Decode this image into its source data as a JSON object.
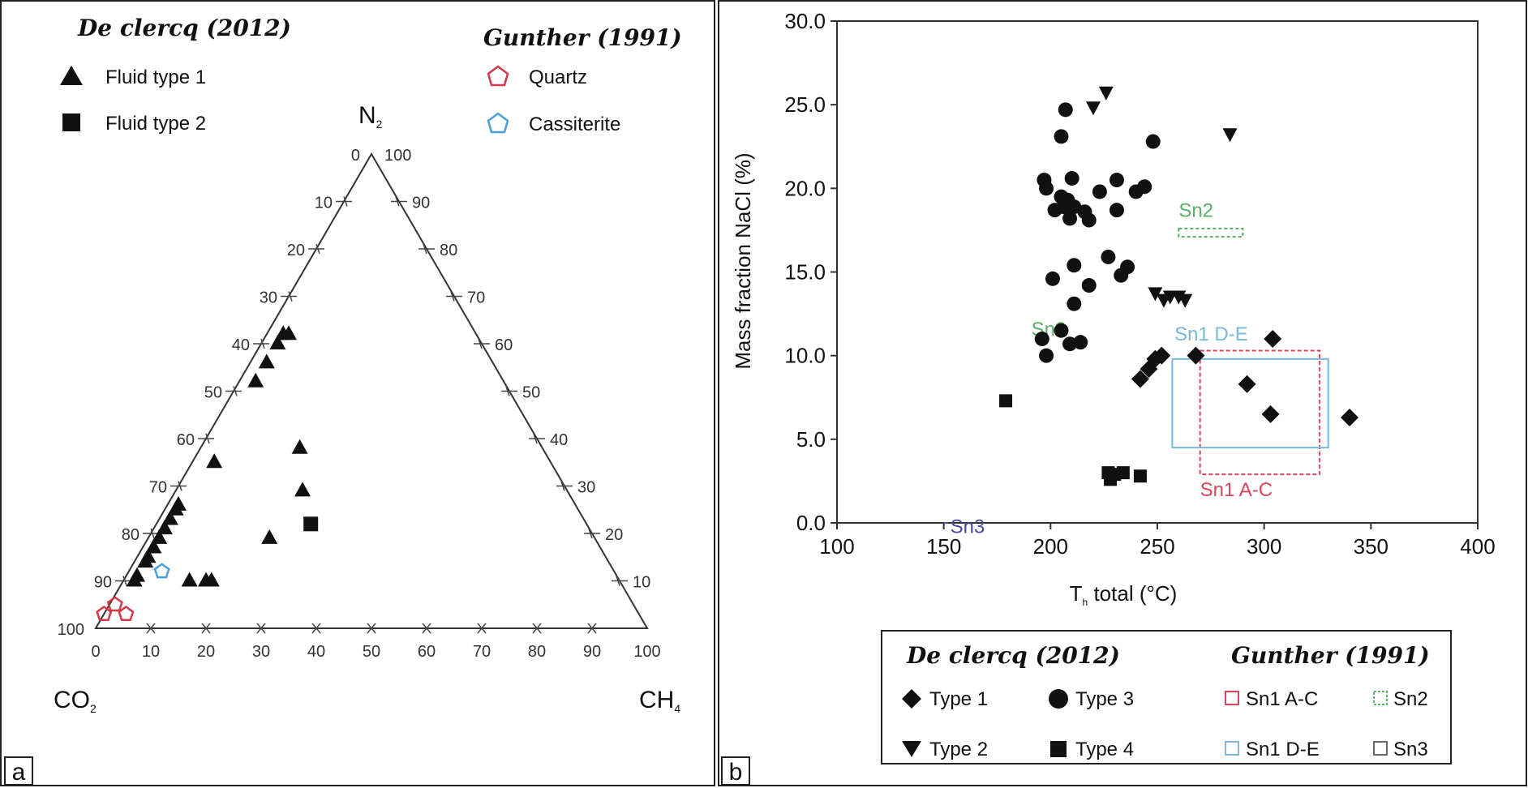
{
  "colors": {
    "black": "#111111",
    "quartz": "#d23a4a",
    "cassiterite": "#4a9fd8",
    "sn1ac": "#d9455a",
    "sn2": "#5aae6a",
    "sn1de": "#7ab8dc",
    "sn3": "#4a4aa0"
  },
  "panel_a": {
    "label": "a",
    "legend_left": {
      "title": "De clercq (2012)",
      "items": [
        {
          "name": "Fluid type 1",
          "marker": "triangle"
        },
        {
          "name": "Fluid type 2",
          "marker": "square"
        }
      ]
    },
    "legend_right": {
      "title": "Gunther (1991)",
      "items": [
        {
          "name": "Quartz",
          "marker": "pentagon-open-red"
        },
        {
          "name": "Cassiterite",
          "marker": "pentagon-open-blue"
        }
      ]
    },
    "vertex_labels": {
      "top": "N",
      "top_sub": "2",
      "left": "CO",
      "left_sub": "2",
      "right": "CH",
      "right_sub": "4"
    },
    "left_ticks": [
      "0",
      "10",
      "20",
      "30",
      "40",
      "50",
      "60",
      "70",
      "80",
      "90",
      "100"
    ],
    "right_ticks": [
      "100",
      "90",
      "80",
      "70",
      "60",
      "50",
      "40",
      "30",
      "20",
      "10"
    ],
    "bottom_ticks": [
      "0",
      "10",
      "20",
      "30",
      "40",
      "50",
      "60",
      "70",
      "80",
      "90",
      "100"
    ]
  },
  "panel_b": {
    "label": "b",
    "sn_labels": {
      "sn2_top": "Sn2",
      "sn2_mid": "Sn2",
      "sn1de": "Sn1 D-E",
      "sn1ac": "Sn1 A-C",
      "sn3": "Sn3"
    },
    "legend": {
      "left_title": "De clercq (2012)",
      "right_title": "Gunther (1991)",
      "items": [
        {
          "name": "Type 1",
          "marker": "diamond"
        },
        {
          "name": "Type 3",
          "marker": "circle"
        },
        {
          "name": "Type 2",
          "marker": "triangle-down"
        },
        {
          "name": "Type 4",
          "marker": "square"
        },
        {
          "name": "Sn1 A-C",
          "marker": "box-sn1ac"
        },
        {
          "name": "Sn2",
          "marker": "box-sn2"
        },
        {
          "name": "Sn1 D-E",
          "marker": "box-sn1de"
        },
        {
          "name": "Sn3",
          "marker": "box-sn3"
        }
      ]
    }
  },
  "chart_data": [
    {
      "type": "scatter",
      "subtype": "ternary",
      "title": "",
      "components": [
        "CO2",
        "N2",
        "CH4"
      ],
      "series": [
        {
          "name": "Fluid type 1",
          "marker": "triangle",
          "points": [
            {
              "co2": 35,
              "n2": 62,
              "ch4": 3
            },
            {
              "co2": 37,
              "n2": 60,
              "ch4": 3
            },
            {
              "co2": 34,
              "n2": 62,
              "ch4": 4
            },
            {
              "co2": 41,
              "n2": 56,
              "ch4": 3
            },
            {
              "co2": 45,
              "n2": 52,
              "ch4": 3
            },
            {
              "co2": 61,
              "n2": 35,
              "ch4": 4
            },
            {
              "co2": 44,
              "n2": 38,
              "ch4": 18
            },
            {
              "co2": 48,
              "n2": 29,
              "ch4": 23
            },
            {
              "co2": 59,
              "n2": 19,
              "ch4": 22
            },
            {
              "co2": 72,
              "n2": 26,
              "ch4": 2
            },
            {
              "co2": 73,
              "n2": 25,
              "ch4": 2
            },
            {
              "co2": 75,
              "n2": 23,
              "ch4": 2
            },
            {
              "co2": 77,
              "n2": 21,
              "ch4": 2
            },
            {
              "co2": 79,
              "n2": 19,
              "ch4": 2
            },
            {
              "co2": 81,
              "n2": 17,
              "ch4": 2
            },
            {
              "co2": 83,
              "n2": 15,
              "ch4": 2
            },
            {
              "co2": 84,
              "n2": 14,
              "ch4": 2
            },
            {
              "co2": 87,
              "n2": 11,
              "ch4": 2
            },
            {
              "co2": 88,
              "n2": 10,
              "ch4": 2
            },
            {
              "co2": 78,
              "n2": 10,
              "ch4": 12
            },
            {
              "co2": 75,
              "n2": 10,
              "ch4": 15
            },
            {
              "co2": 74,
              "n2": 10,
              "ch4": 16
            }
          ]
        },
        {
          "name": "Fluid type 2",
          "marker": "square",
          "points": [
            {
              "co2": 50,
              "n2": 22,
              "ch4": 28
            }
          ]
        },
        {
          "name": "Quartz",
          "marker": "pentagon-open",
          "points": [
            {
              "co2": 94,
              "n2": 5,
              "ch4": 1
            },
            {
              "co2": 93,
              "n2": 3,
              "ch4": 4
            },
            {
              "co2": 97,
              "n2": 3,
              "ch4": 0
            }
          ]
        },
        {
          "name": "Cassiterite",
          "marker": "pentagon-open",
          "points": [
            {
              "co2": 82,
              "n2": 12,
              "ch4": 6
            }
          ]
        }
      ]
    },
    {
      "type": "scatter",
      "title": "",
      "xlabel": "T total (°C)",
      "xlabel_main": "T",
      "xlabel_sub": "h",
      "xlabel_rest": " total (°C)",
      "ylabel": "Mass fraction NaCl (%)",
      "xlim": [
        100,
        400
      ],
      "ylim": [
        0,
        30
      ],
      "xticks": [
        "100",
        "150",
        "200",
        "250",
        "300",
        "350",
        "400"
      ],
      "yticks": [
        "0.0",
        "5.0",
        "10.0",
        "15.0",
        "20.0",
        "25.0",
        "30.0"
      ],
      "series": [
        {
          "name": "Type 1",
          "marker": "diamond",
          "points": [
            [
              242,
              8.6
            ],
            [
              246,
              9.2
            ],
            [
              249,
              9.8
            ],
            [
              252,
              10.0
            ],
            [
              268,
              10.0
            ],
            [
              292,
              8.3
            ],
            [
              303,
              6.5
            ],
            [
              340,
              6.3
            ],
            [
              304,
              11.0
            ]
          ]
        },
        {
          "name": "Type 2",
          "marker": "triangle-down",
          "points": [
            [
              220,
              24.8
            ],
            [
              226,
              25.7
            ],
            [
              284,
              23.2
            ],
            [
              249,
              13.7
            ],
            [
              253,
              13.3
            ],
            [
              256,
              13.5
            ],
            [
              260,
              13.5
            ],
            [
              263,
              13.3
            ]
          ]
        },
        {
          "name": "Type 3",
          "marker": "circle",
          "points": [
            [
              207,
              24.7
            ],
            [
              205,
              23.1
            ],
            [
              248,
              22.8
            ],
            [
              197,
              20.5
            ],
            [
              198,
              20.0
            ],
            [
              210,
              20.6
            ],
            [
              205,
              19.5
            ],
            [
              208,
              19.3
            ],
            [
              202,
              18.7
            ],
            [
              206,
              18.9
            ],
            [
              211,
              18.9
            ],
            [
              216,
              18.6
            ],
            [
              209,
              18.2
            ],
            [
              218,
              18.1
            ],
            [
              223,
              19.8
            ],
            [
              231,
              20.5
            ],
            [
              240,
              19.8
            ],
            [
              244,
              20.1
            ],
            [
              231,
              18.7
            ],
            [
              201,
              14.6
            ],
            [
              211,
              15.4
            ],
            [
              218,
              14.2
            ],
            [
              211,
              13.1
            ],
            [
              227,
              15.9
            ],
            [
              236,
              15.3
            ],
            [
              233,
              14.8
            ],
            [
              196,
              11.0
            ],
            [
              205,
              11.5
            ],
            [
              209,
              10.7
            ],
            [
              214,
              10.8
            ],
            [
              198,
              10.0
            ]
          ]
        },
        {
          "name": "Type 4",
          "marker": "square",
          "points": [
            [
              179,
              7.3
            ],
            [
              228,
              2.6
            ],
            [
              230,
              2.9
            ],
            [
              234,
              3.0
            ],
            [
              242,
              2.8
            ],
            [
              227,
              3.0
            ]
          ]
        }
      ],
      "regions": [
        {
          "name": "Sn1 A-C",
          "x": [
            270,
            326
          ],
          "y": [
            2.9,
            10.3
          ]
        },
        {
          "name": "Sn1 D-E",
          "x": [
            257,
            330
          ],
          "y": [
            4.5,
            9.8
          ]
        },
        {
          "name": "Sn2",
          "x": [
            260,
            290
          ],
          "y": [
            17.1,
            17.6
          ]
        },
        {
          "name": "Sn3",
          "x": [
            151,
            151
          ],
          "y": [
            0.0,
            0.0
          ]
        }
      ]
    }
  ]
}
